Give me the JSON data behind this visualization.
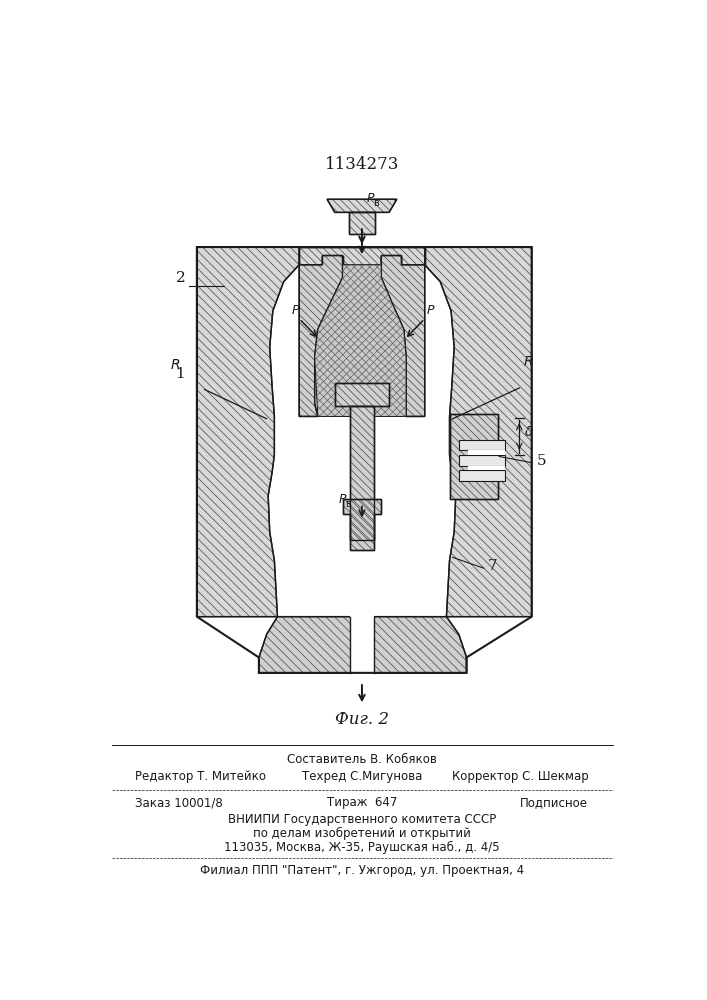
{
  "patent_num": "1134273",
  "fig_label": "Фиг. 2",
  "line_color": "#1a1a1a",
  "bg_color": "#ffffff",
  "hatch_color": "#444444",
  "fill_light": "#d8d8d8",
  "fill_mid": "#d0d0d0",
  "labels": {
    "label_1": "1",
    "label_2": "2",
    "label_5": "5",
    "label_7": "7",
    "label_R_left": "R",
    "label_R_right": "R",
    "label_delta": "δ",
    "label_P_top": "P",
    "label_P_sub_top": "в",
    "label_P_left": "P",
    "label_P_right": "P",
    "label_Pb_bottom": "P",
    "label_Pb_sub": "в"
  },
  "footer": {
    "line1_center": "Составитель В. Кобяков",
    "line2_left": "Редактор Т. Митейко",
    "line2_center": "Техред С.Мигунова",
    "line2_right": "Корректор С. Шекмар",
    "line3_left": "Заказ 10001/8",
    "line3_center": "Тираж  647",
    "line3_right": "Подписное",
    "line4": "ВНИИПИ Государственного комитета СССР",
    "line5": "по делам изобретений и открытий",
    "line6": "113035, Москва, Ж-35, Раушская наб., д. 4/5",
    "line7": "Филиал ППП \"Патент\", г. Ужгород, ул. Проектная, 4"
  }
}
